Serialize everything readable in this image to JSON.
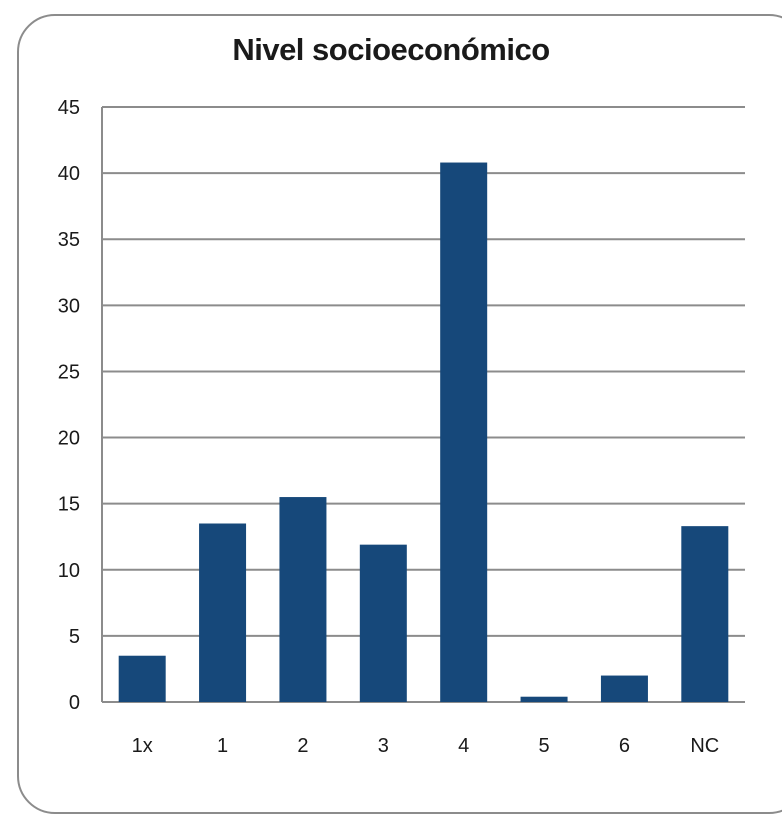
{
  "chart_data": {
    "type": "bar",
    "title": "Nivel socioeconómico",
    "categories": [
      "1x",
      "1",
      "2",
      "3",
      "4",
      "5",
      "6",
      "NC"
    ],
    "values": [
      3.5,
      13.5,
      15.5,
      11.9,
      40.8,
      0.4,
      2.0,
      13.3
    ],
    "ylim": [
      0,
      45
    ],
    "yticks": [
      0,
      5,
      10,
      15,
      20,
      25,
      30,
      35,
      40,
      45
    ],
    "grid": true,
    "bar_color": "#16487a",
    "grid_color": "#8c8c8c"
  }
}
